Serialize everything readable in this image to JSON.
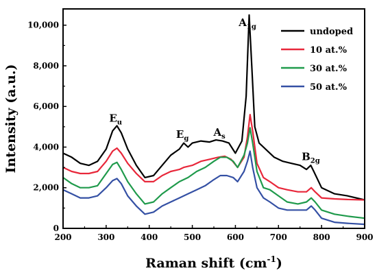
{
  "chart_data": {
    "type": "line",
    "xlabel": "Raman shift (cm",
    "xlabel_sup": "-1",
    "xlabel_tail": ")",
    "ylabel": "Intensity (a.u.)",
    "xlim": [
      200,
      900
    ],
    "ylim": [
      0,
      10800
    ],
    "xticks": [
      200,
      300,
      400,
      500,
      600,
      700,
      800,
      900
    ],
    "yticks": [
      0,
      2000,
      4000,
      6000,
      8000,
      10000
    ],
    "xtick_labels": [
      "200",
      "300",
      "400",
      "500",
      "600",
      "700",
      "800",
      "900"
    ],
    "ytick_labels": [
      "0",
      "2,000",
      "4,000",
      "6,000",
      "8,000",
      "10,000"
    ],
    "legend_position": "top-right",
    "series": [
      {
        "name": "undoped",
        "color": "#000000",
        "points": [
          [
            200,
            3700
          ],
          [
            220,
            3500
          ],
          [
            240,
            3200
          ],
          [
            260,
            3100
          ],
          [
            280,
            3300
          ],
          [
            300,
            3900
          ],
          [
            315,
            4800
          ],
          [
            325,
            5050
          ],
          [
            335,
            4700
          ],
          [
            350,
            3900
          ],
          [
            370,
            3100
          ],
          [
            390,
            2500
          ],
          [
            410,
            2600
          ],
          [
            430,
            3100
          ],
          [
            450,
            3600
          ],
          [
            470,
            3900
          ],
          [
            480,
            4200
          ],
          [
            490,
            4000
          ],
          [
            500,
            4200
          ],
          [
            520,
            4300
          ],
          [
            540,
            4250
          ],
          [
            555,
            4350
          ],
          [
            570,
            4300
          ],
          [
            585,
            4200
          ],
          [
            600,
            3700
          ],
          [
            615,
            4300
          ],
          [
            625,
            6500
          ],
          [
            632,
            10500
          ],
          [
            638,
            8000
          ],
          [
            645,
            5000
          ],
          [
            655,
            4200
          ],
          [
            670,
            3900
          ],
          [
            690,
            3500
          ],
          [
            710,
            3300
          ],
          [
            730,
            3200
          ],
          [
            750,
            3100
          ],
          [
            765,
            2900
          ],
          [
            775,
            3100
          ],
          [
            782,
            2800
          ],
          [
            800,
            2000
          ],
          [
            830,
            1700
          ],
          [
            860,
            1600
          ],
          [
            900,
            1400
          ]
        ]
      },
      {
        "name": "10 at.%",
        "color": "#e8273a",
        "points": [
          [
            200,
            3000
          ],
          [
            220,
            2800
          ],
          [
            240,
            2700
          ],
          [
            260,
            2700
          ],
          [
            280,
            2800
          ],
          [
            300,
            3300
          ],
          [
            315,
            3800
          ],
          [
            325,
            3950
          ],
          [
            335,
            3700
          ],
          [
            350,
            3200
          ],
          [
            370,
            2700
          ],
          [
            390,
            2300
          ],
          [
            410,
            2300
          ],
          [
            430,
            2600
          ],
          [
            450,
            2800
          ],
          [
            470,
            2900
          ],
          [
            480,
            3000
          ],
          [
            500,
            3100
          ],
          [
            520,
            3300
          ],
          [
            540,
            3400
          ],
          [
            560,
            3500
          ],
          [
            575,
            3550
          ],
          [
            590,
            3400
          ],
          [
            605,
            3000
          ],
          [
            620,
            3500
          ],
          [
            628,
            4500
          ],
          [
            634,
            5600
          ],
          [
            640,
            4800
          ],
          [
            650,
            3200
          ],
          [
            665,
            2500
          ],
          [
            680,
            2300
          ],
          [
            700,
            2000
          ],
          [
            720,
            1900
          ],
          [
            745,
            1800
          ],
          [
            765,
            1800
          ],
          [
            776,
            2000
          ],
          [
            785,
            1800
          ],
          [
            800,
            1500
          ],
          [
            830,
            1450
          ],
          [
            860,
            1420
          ],
          [
            900,
            1400
          ]
        ]
      },
      {
        "name": "30 at.%",
        "color": "#1f9a4b",
        "points": [
          [
            200,
            2500
          ],
          [
            220,
            2200
          ],
          [
            240,
            2000
          ],
          [
            260,
            2000
          ],
          [
            280,
            2100
          ],
          [
            300,
            2700
          ],
          [
            315,
            3150
          ],
          [
            325,
            3250
          ],
          [
            335,
            2900
          ],
          [
            350,
            2300
          ],
          [
            370,
            1700
          ],
          [
            390,
            1200
          ],
          [
            410,
            1300
          ],
          [
            430,
            1700
          ],
          [
            450,
            2000
          ],
          [
            470,
            2300
          ],
          [
            490,
            2500
          ],
          [
            510,
            2800
          ],
          [
            530,
            3000
          ],
          [
            550,
            3300
          ],
          [
            565,
            3500
          ],
          [
            580,
            3500
          ],
          [
            595,
            3300
          ],
          [
            605,
            3000
          ],
          [
            620,
            3600
          ],
          [
            628,
            4200
          ],
          [
            634,
            4950
          ],
          [
            640,
            4200
          ],
          [
            650,
            2800
          ],
          [
            665,
            2000
          ],
          [
            680,
            1900
          ],
          [
            700,
            1600
          ],
          [
            720,
            1300
          ],
          [
            745,
            1200
          ],
          [
            765,
            1300
          ],
          [
            776,
            1500
          ],
          [
            785,
            1300
          ],
          [
            800,
            900
          ],
          [
            830,
            700
          ],
          [
            860,
            600
          ],
          [
            900,
            500
          ]
        ]
      },
      {
        "name": "50 at.%",
        "color": "#3450a4",
        "points": [
          [
            200,
            1900
          ],
          [
            220,
            1700
          ],
          [
            240,
            1500
          ],
          [
            260,
            1500
          ],
          [
            280,
            1600
          ],
          [
            300,
            2000
          ],
          [
            315,
            2350
          ],
          [
            325,
            2450
          ],
          [
            335,
            2200
          ],
          [
            350,
            1600
          ],
          [
            370,
            1100
          ],
          [
            390,
            700
          ],
          [
            410,
            800
          ],
          [
            430,
            1100
          ],
          [
            450,
            1300
          ],
          [
            470,
            1500
          ],
          [
            490,
            1700
          ],
          [
            510,
            1900
          ],
          [
            530,
            2100
          ],
          [
            550,
            2400
          ],
          [
            565,
            2600
          ],
          [
            580,
            2600
          ],
          [
            595,
            2500
          ],
          [
            605,
            2300
          ],
          [
            620,
            2800
          ],
          [
            628,
            3300
          ],
          [
            634,
            3800
          ],
          [
            640,
            3000
          ],
          [
            650,
            2000
          ],
          [
            665,
            1500
          ],
          [
            680,
            1300
          ],
          [
            700,
            1000
          ],
          [
            720,
            900
          ],
          [
            745,
            900
          ],
          [
            765,
            900
          ],
          [
            776,
            1100
          ],
          [
            785,
            900
          ],
          [
            800,
            500
          ],
          [
            830,
            300
          ],
          [
            860,
            250
          ],
          [
            900,
            200
          ]
        ]
      }
    ],
    "annotations": [
      {
        "main": "E",
        "sub": "u",
        "x": 322,
        "y": 5250
      },
      {
        "main": "E",
        "sub": "g",
        "x": 477,
        "y": 4450
      },
      {
        "main": "A",
        "sub": "s",
        "x": 563,
        "y": 4550
      },
      {
        "main": "A",
        "sub": "1g",
        "x": 628,
        "y": 9950
      },
      {
        "main": "B",
        "sub": "2g",
        "x": 775,
        "y": 3350
      }
    ]
  }
}
